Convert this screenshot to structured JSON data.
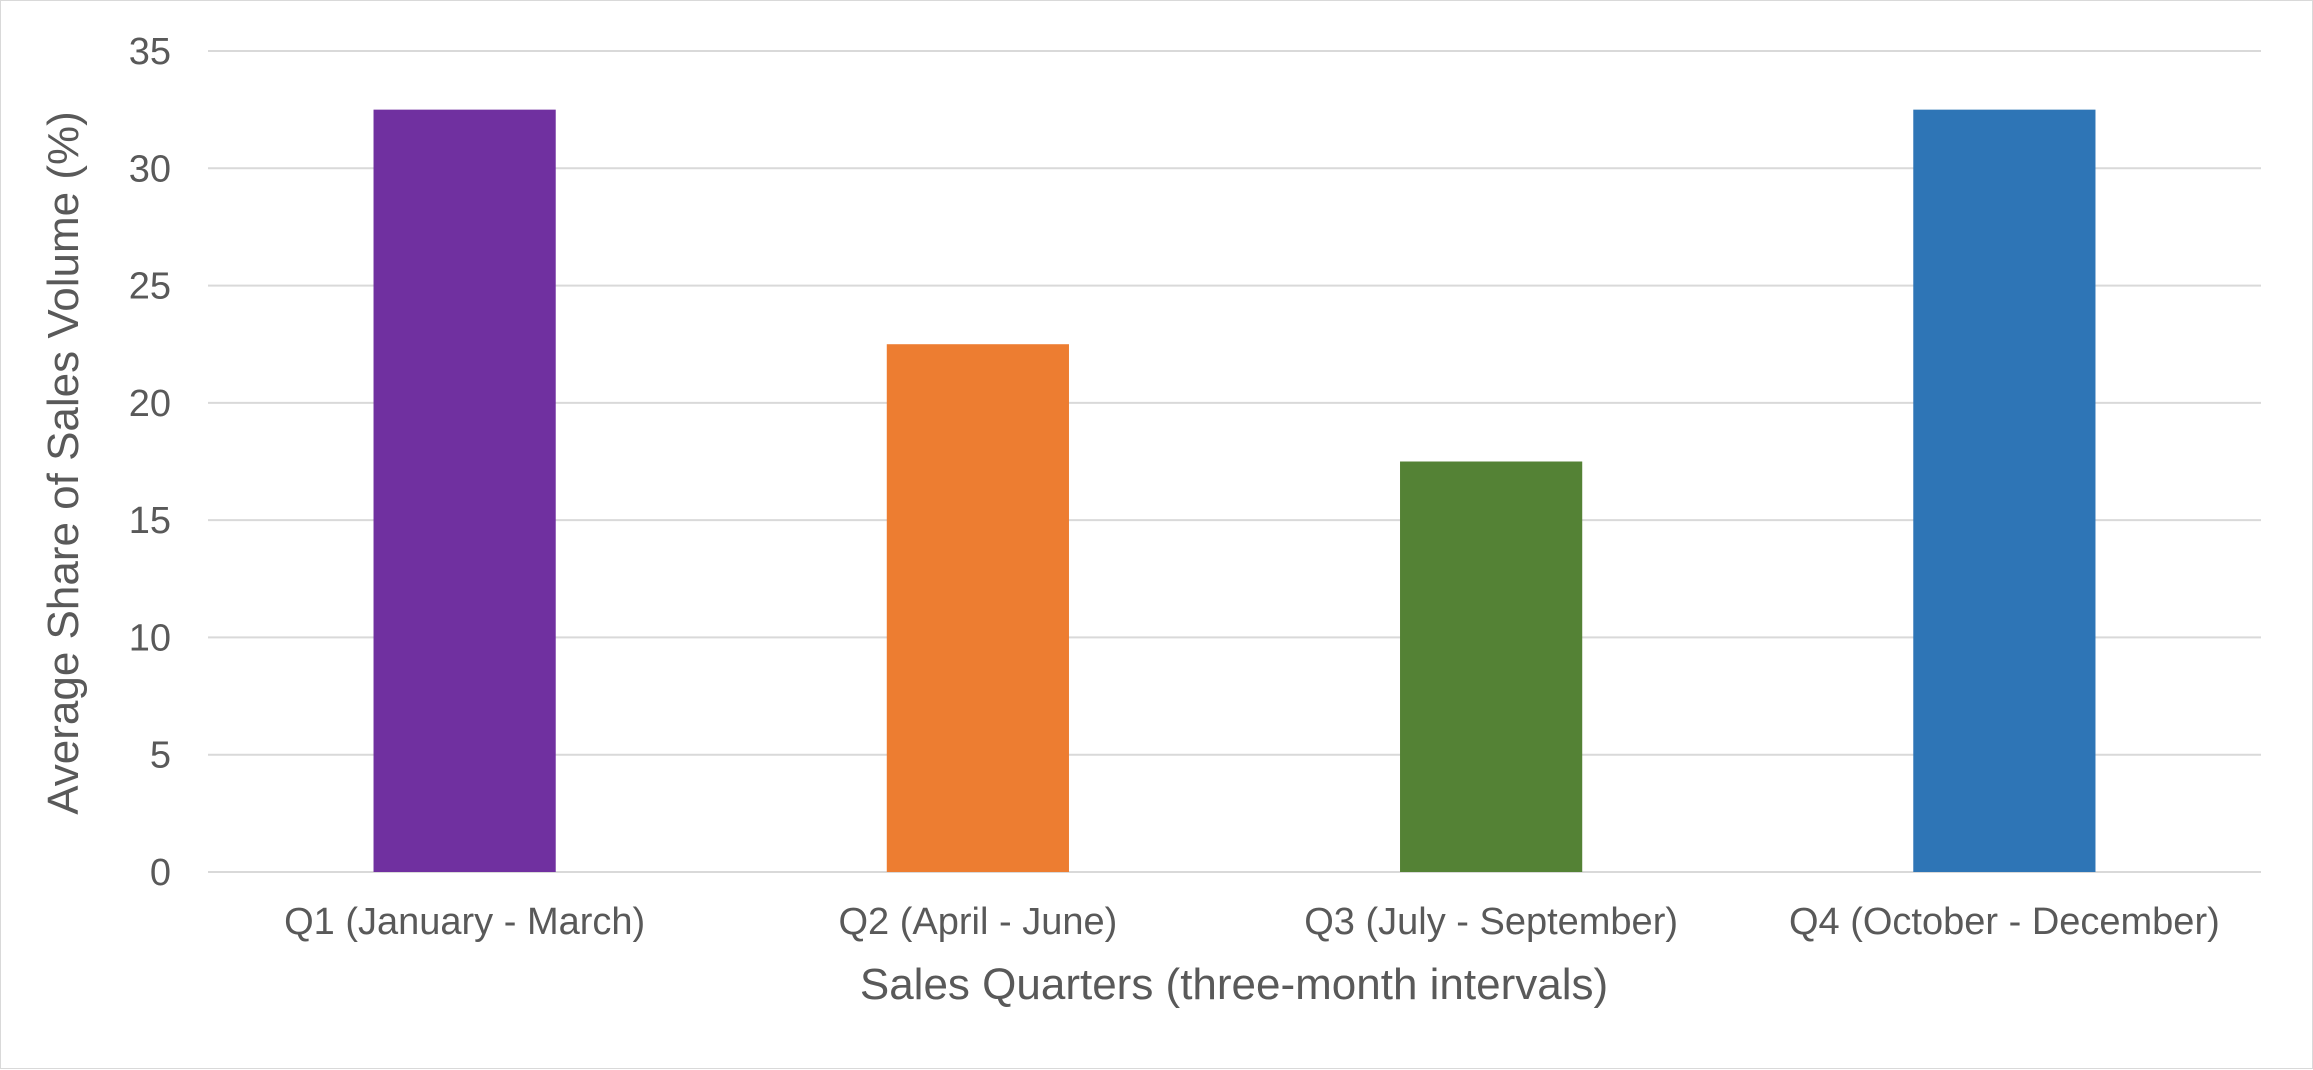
{
  "chart_data": {
    "type": "bar",
    "categories": [
      "Q1 (January - March)",
      "Q2 (April - June)",
      "Q3 (July - September)",
      "Q4 (October - December)"
    ],
    "values": [
      32.5,
      22.5,
      17.5,
      32.5
    ],
    "bar_colors": [
      "#7030a0",
      "#ed7d31",
      "#548235",
      "#2e75b6"
    ],
    "xlabel": "Sales Quarters (three-month intervals)",
    "ylabel": "Average Share of Sales Volume (%)",
    "ylim": [
      0,
      35
    ],
    "yticks": [
      0,
      5,
      10,
      15,
      20,
      25,
      30,
      35
    ],
    "grid": true,
    "legend": "none",
    "colors": {
      "gridline": "#d9d9d9",
      "text": "#595959"
    }
  }
}
